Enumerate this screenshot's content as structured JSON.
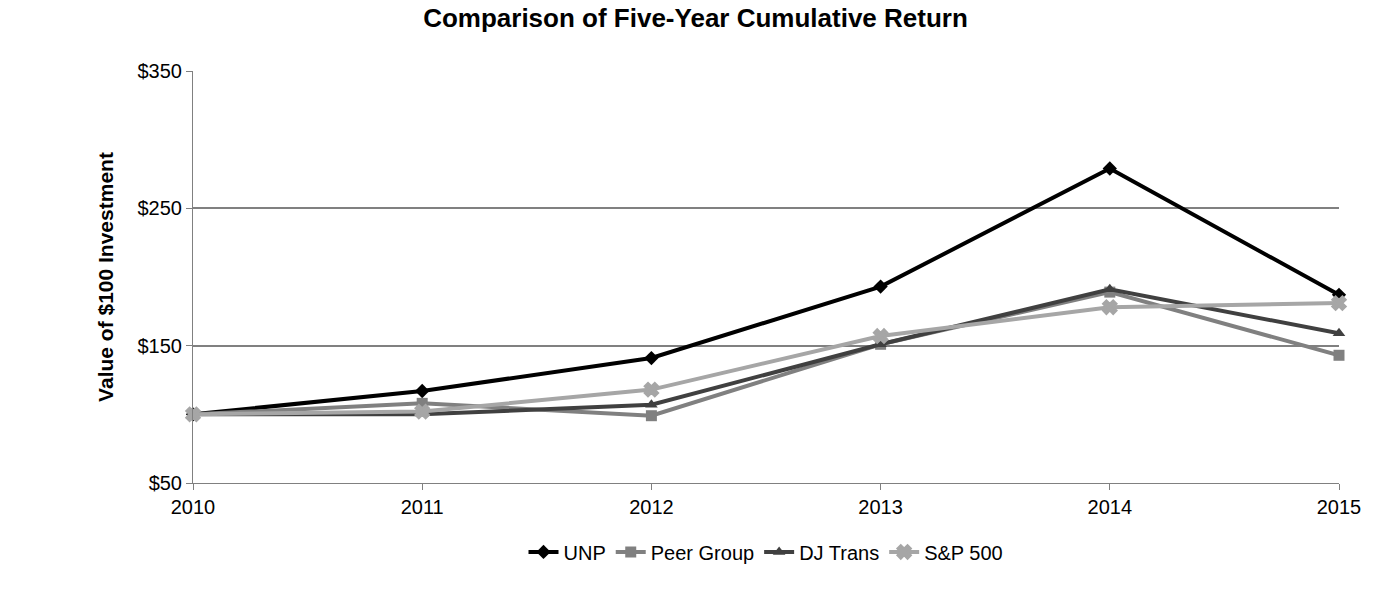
{
  "chart_data": {
    "type": "line",
    "title": "Comparison of Five-Year Cumulative Return",
    "y_label": "Value of $100 Investment",
    "x": [
      2010,
      2011,
      2012,
      2013,
      2014,
      2015
    ],
    "xlim": [
      2010,
      2015
    ],
    "xticks": [
      2010,
      2011,
      2012,
      2013,
      2014,
      2015
    ],
    "ylim": [
      50,
      350
    ],
    "yticks": [
      {
        "value": 50,
        "label": "$50"
      },
      {
        "value": 150,
        "label": "$150"
      },
      {
        "value": 250,
        "label": "$250"
      },
      {
        "value": 350,
        "label": "$350"
      }
    ],
    "grid": true,
    "legend": "bottom",
    "series": [
      {
        "name": "UNP",
        "color": "#000000",
        "marker": "diamond",
        "line_style": "solid",
        "values": [
          100,
          117,
          141,
          193,
          279,
          187
        ]
      },
      {
        "name": "Peer Group",
        "color": "#808080",
        "marker": "square",
        "line_style": "solid",
        "values": [
          100,
          108,
          99,
          151,
          189,
          143
        ]
      },
      {
        "name": "DJ Trans",
        "color": "#404040",
        "marker": "triangle-up",
        "line_style": "solid",
        "values": [
          100,
          100,
          107,
          151,
          191,
          159
        ]
      },
      {
        "name": "S&P 500",
        "color": "#a6a6a6",
        "marker": "x",
        "line_style": "solid",
        "values": [
          100,
          102,
          118,
          157,
          178,
          181
        ]
      }
    ]
  }
}
